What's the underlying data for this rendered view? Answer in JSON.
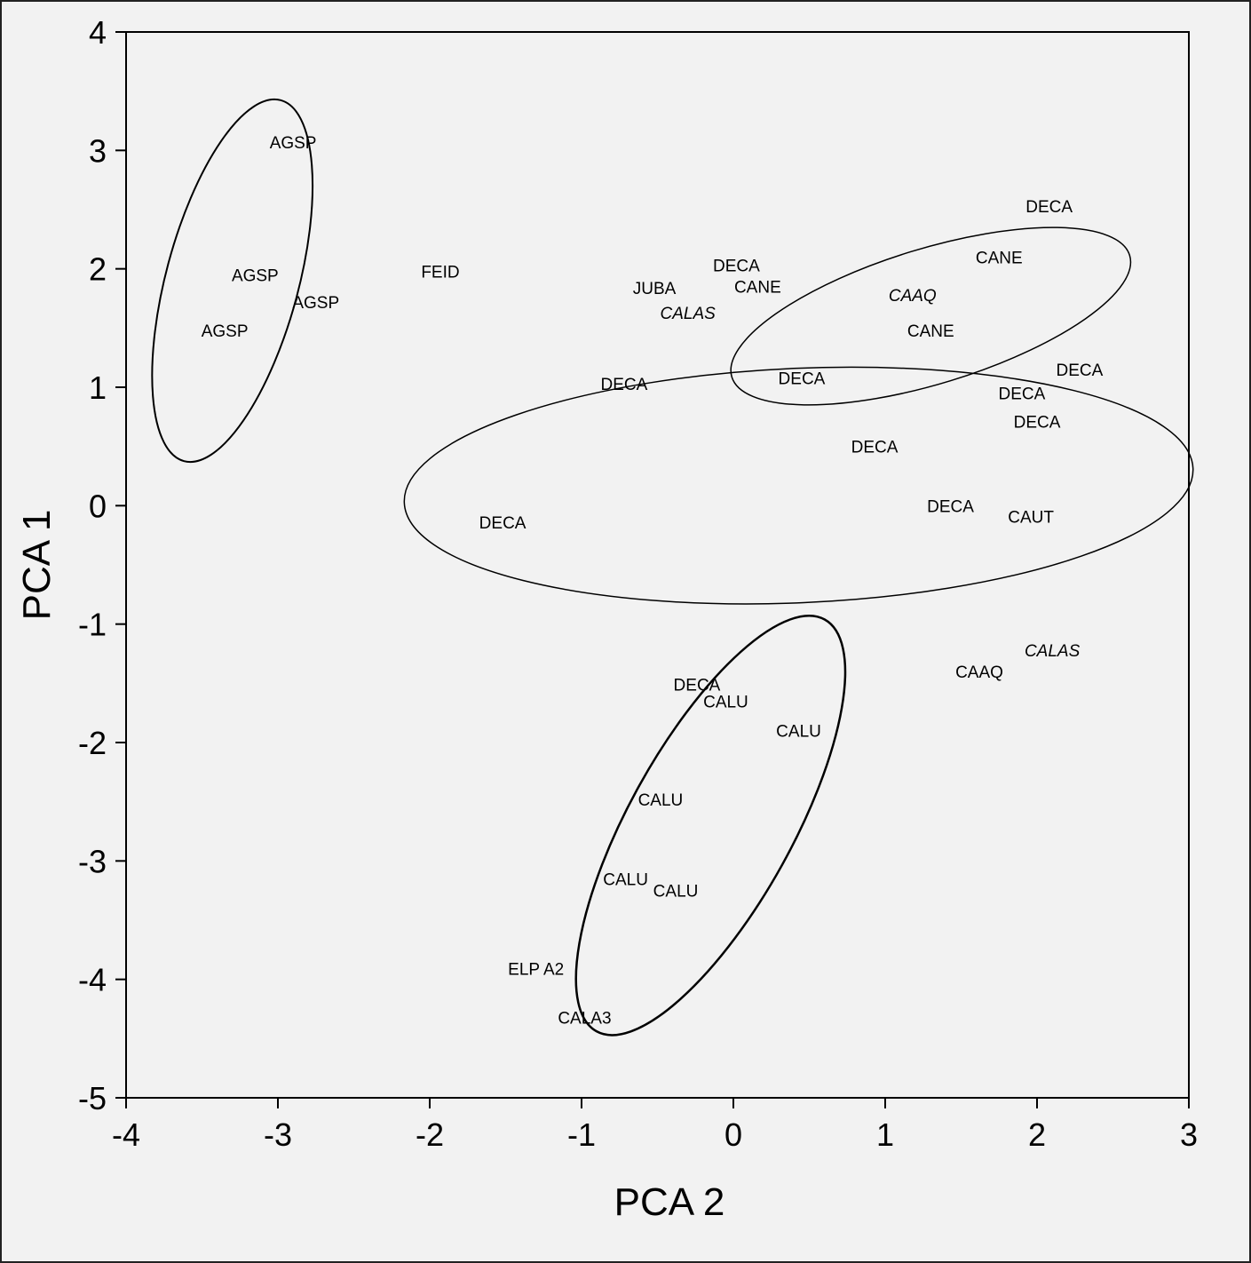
{
  "chart_data": {
    "type": "scatter",
    "title": "",
    "xlabel": "PCA 2",
    "ylabel": "PCA 1",
    "xlim": [
      -4,
      3
    ],
    "ylim": [
      -5,
      4
    ],
    "x_ticks": [
      -4,
      -3,
      -2,
      -1,
      0,
      1,
      2,
      3
    ],
    "y_ticks": [
      -5,
      -4,
      -3,
      -2,
      -1,
      0,
      1,
      2,
      3,
      4
    ],
    "grid": false,
    "legend": "none",
    "colors": {
      "background": "#f2f2f2",
      "ink": "#000000"
    },
    "points": [
      {
        "label": "AGSP",
        "x": -2.9,
        "y": 3.07,
        "italic": false
      },
      {
        "label": "AGSP",
        "x": -3.15,
        "y": 1.95,
        "italic": false
      },
      {
        "label": "AGSP",
        "x": -2.75,
        "y": 1.72,
        "italic": false
      },
      {
        "label": "AGSP",
        "x": -3.35,
        "y": 1.48,
        "italic": false
      },
      {
        "label": "FEID",
        "x": -1.93,
        "y": 1.98,
        "italic": false
      },
      {
        "label": "JUBA",
        "x": -0.52,
        "y": 1.84,
        "italic": false
      },
      {
        "label": "CALAS",
        "x": -0.3,
        "y": 1.63,
        "italic": true
      },
      {
        "label": "DECA",
        "x": 0.02,
        "y": 2.03,
        "italic": false
      },
      {
        "label": "CANE",
        "x": 0.16,
        "y": 1.85,
        "italic": false
      },
      {
        "label": "CAAQ",
        "x": 1.18,
        "y": 1.78,
        "italic": true
      },
      {
        "label": "CANE",
        "x": 1.3,
        "y": 1.48,
        "italic": false
      },
      {
        "label": "CANE",
        "x": 1.75,
        "y": 2.1,
        "italic": false
      },
      {
        "label": "DECA",
        "x": 2.08,
        "y": 2.53,
        "italic": false
      },
      {
        "label": "DECA",
        "x": -0.72,
        "y": 1.03,
        "italic": false
      },
      {
        "label": "DECA",
        "x": 0.45,
        "y": 1.08,
        "italic": false
      },
      {
        "label": "DECA",
        "x": 2.28,
        "y": 1.15,
        "italic": false
      },
      {
        "label": "DECA",
        "x": 1.9,
        "y": 0.95,
        "italic": false
      },
      {
        "label": "DECA",
        "x": 2.0,
        "y": 0.71,
        "italic": false
      },
      {
        "label": "DECA",
        "x": 0.93,
        "y": 0.5,
        "italic": false
      },
      {
        "label": "DECA",
        "x": 1.43,
        "y": 0.0,
        "italic": false
      },
      {
        "label": "CAUT",
        "x": 1.96,
        "y": -0.09,
        "italic": false
      },
      {
        "label": "DECA",
        "x": -1.52,
        "y": -0.14,
        "italic": false
      },
      {
        "label": "CALAS",
        "x": 2.1,
        "y": -1.22,
        "italic": true
      },
      {
        "label": "CAAQ",
        "x": 1.62,
        "y": -1.4,
        "italic": false
      },
      {
        "label": "DECA",
        "x": -0.24,
        "y": -1.51,
        "italic": false
      },
      {
        "label": "CALU",
        "x": -0.05,
        "y": -1.65,
        "italic": false
      },
      {
        "label": "CALU",
        "x": 0.43,
        "y": -1.9,
        "italic": false
      },
      {
        "label": "CALU",
        "x": -0.48,
        "y": -2.48,
        "italic": false
      },
      {
        "label": "CALU",
        "x": -0.71,
        "y": -3.15,
        "italic": false
      },
      {
        "label": "CALU",
        "x": -0.38,
        "y": -3.25,
        "italic": false
      },
      {
        "label": "ELP A2",
        "x": -1.3,
        "y": -3.91,
        "italic": false
      },
      {
        "label": "CALA3",
        "x": -0.98,
        "y": -4.32,
        "italic": false
      }
    ],
    "ellipses": [
      {
        "cx": -3.3,
        "cy": 1.9,
        "rx": 1.23,
        "ry": 0.56,
        "angle_deg": -75,
        "stroke_width": 2
      },
      {
        "cx": 1.3,
        "cy": 1.6,
        "rx": 1.37,
        "ry": 0.57,
        "angle_deg": -17,
        "stroke_width": 1.5
      },
      {
        "cx": 0.43,
        "cy": 0.17,
        "rx": 2.6,
        "ry": 0.99,
        "angle_deg": -2.5,
        "stroke_width": 1.5
      },
      {
        "cx": -0.15,
        "cy": -2.7,
        "rx": 1.55,
        "ry": 0.69,
        "angle_deg": -61,
        "stroke_width": 2.5
      }
    ]
  }
}
